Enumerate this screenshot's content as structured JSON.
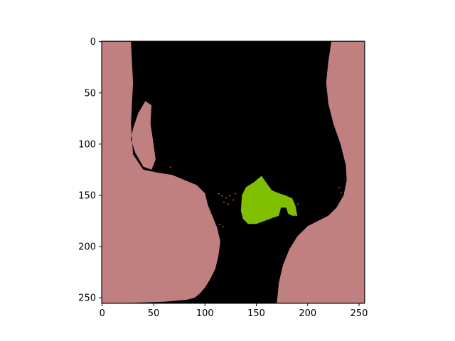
{
  "chart_data": {
    "type": "heatmap",
    "title": "",
    "xlabel": "",
    "ylabel": "",
    "image_shape": [
      256,
      256
    ],
    "xlim": [
      -0.5,
      255.5
    ],
    "ylim": [
      255.5,
      -0.5
    ],
    "x_ticks": [
      0,
      50,
      100,
      150,
      200,
      250
    ],
    "y_ticks": [
      0,
      50,
      100,
      150,
      200,
      250
    ],
    "x_tick_labels": [
      "0",
      "50",
      "100",
      "150",
      "200",
      "250"
    ],
    "y_tick_labels": [
      "0",
      "50",
      "100",
      "150",
      "200",
      "250"
    ],
    "grid": false,
    "legend": "none",
    "colors": {
      "background": "#000000",
      "tissue": "#c08080",
      "lesion": "#80c000",
      "speckle": "#c08000"
    },
    "regions": [
      {
        "class": "tissue",
        "polygon": [
          [
            0,
            0
          ],
          [
            28,
            0
          ],
          [
            30,
            40
          ],
          [
            28,
            80
          ],
          [
            30,
            110
          ],
          [
            40,
            125
          ],
          [
            55,
            128
          ],
          [
            68,
            130
          ],
          [
            80,
            135
          ],
          [
            92,
            140
          ],
          [
            100,
            148
          ],
          [
            103,
            160
          ],
          [
            108,
            172
          ],
          [
            112,
            182
          ],
          [
            115,
            195
          ],
          [
            113,
            210
          ],
          [
            110,
            222
          ],
          [
            105,
            232
          ],
          [
            100,
            240
          ],
          [
            95,
            246
          ],
          [
            90,
            250
          ],
          [
            82,
            252
          ],
          [
            60,
            254
          ],
          [
            30,
            255
          ],
          [
            0,
            255
          ]
        ],
        "hole": [
          [
            35,
            70
          ],
          [
            42,
            58
          ],
          [
            48,
            62
          ],
          [
            47,
            80
          ],
          [
            50,
            100
          ],
          [
            52,
            115
          ],
          [
            48,
            125
          ],
          [
            40,
            122
          ],
          [
            32,
            108
          ],
          [
            28,
            95
          ],
          [
            30,
            85
          ]
        ]
      },
      {
        "class": "tissue",
        "polygon": [
          [
            223,
            0
          ],
          [
            255,
            0
          ],
          [
            255,
            255
          ],
          [
            170,
            255
          ],
          [
            172,
            235
          ],
          [
            176,
            218
          ],
          [
            182,
            203
          ],
          [
            190,
            190
          ],
          [
            200,
            180
          ],
          [
            210,
            175
          ],
          [
            220,
            170
          ],
          [
            228,
            162
          ],
          [
            235,
            150
          ],
          [
            238,
            135
          ],
          [
            237,
            120
          ],
          [
            232,
            100
          ],
          [
            225,
            80
          ],
          [
            220,
            60
          ],
          [
            218,
            40
          ],
          [
            220,
            20
          ]
        ]
      },
      {
        "class": "lesion",
        "polygon": [
          [
            136,
            150
          ],
          [
            140,
            142
          ],
          [
            148,
            137
          ],
          [
            155,
            131
          ],
          [
            160,
            138
          ],
          [
            165,
            145
          ],
          [
            172,
            148
          ],
          [
            178,
            150
          ],
          [
            185,
            153
          ],
          [
            188,
            160
          ],
          [
            190,
            170
          ],
          [
            185,
            170
          ],
          [
            181,
            168
          ],
          [
            179,
            162
          ],
          [
            174,
            162
          ],
          [
            172,
            170
          ],
          [
            166,
            172
          ],
          [
            158,
            175
          ],
          [
            150,
            178
          ],
          [
            142,
            178
          ],
          [
            137,
            173
          ],
          [
            135,
            165
          ]
        ]
      }
    ]
  }
}
